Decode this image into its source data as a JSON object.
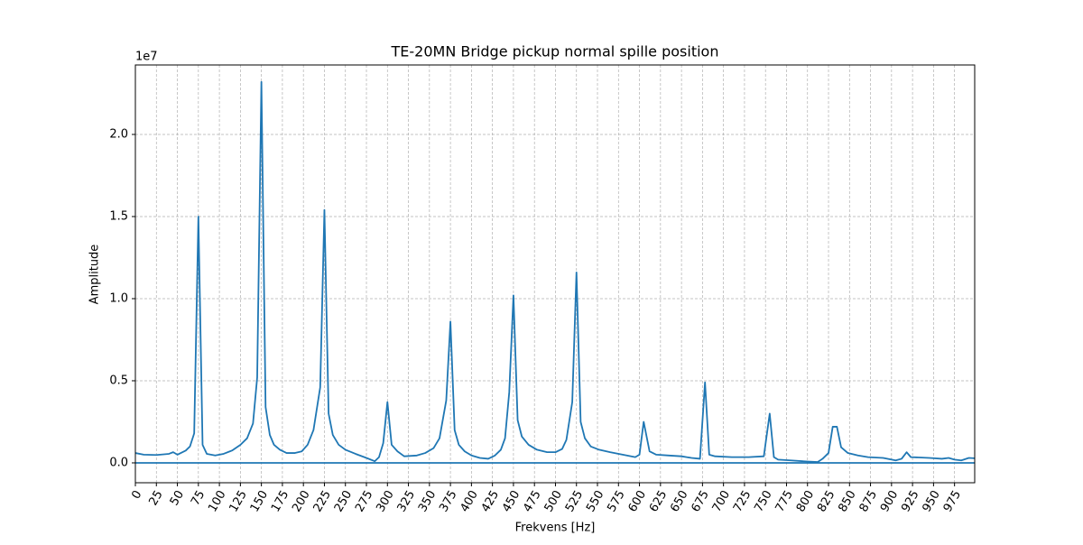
{
  "chart_data": {
    "type": "line",
    "title": "TE-20MN Bridge pickup normal spille position",
    "x_label": "Frekvens [Hz]",
    "y_label": "Amplitude",
    "y_offset_label": "1e7",
    "grid": true,
    "xlim": [
      0,
      999
    ],
    "ylim": [
      -1210000,
      24230000
    ],
    "xticks": [
      0,
      25,
      50,
      75,
      100,
      125,
      150,
      175,
      200,
      225,
      250,
      275,
      300,
      325,
      350,
      375,
      400,
      425,
      450,
      475,
      500,
      525,
      550,
      575,
      600,
      625,
      650,
      675,
      700,
      725,
      750,
      775,
      800,
      825,
      850,
      875,
      900,
      925,
      950,
      975
    ],
    "yticks": [
      {
        "value": 0,
        "label": "0.0"
      },
      {
        "value": 5000000,
        "label": "0.5"
      },
      {
        "value": 10000000,
        "label": "1.0"
      },
      {
        "value": 15000000,
        "label": "1.5"
      },
      {
        "value": 20000000,
        "label": "2.0"
      }
    ],
    "series": [
      {
        "color": "#1f77b4",
        "x": [
          0,
          10,
          25,
          40,
          45,
          50,
          60,
          65,
          70,
          75,
          80,
          85,
          95,
          105,
          115,
          125,
          133,
          140,
          145,
          150,
          155,
          160,
          165,
          172,
          180,
          190,
          198,
          205,
          212,
          220,
          225,
          230,
          235,
          242,
          250,
          262,
          275,
          285,
          290,
          295,
          300,
          305,
          312,
          320,
          335,
          345,
          355,
          362,
          370,
          375,
          380,
          385,
          392,
          400,
          410,
          420,
          428,
          435,
          440,
          445,
          450,
          455,
          460,
          468,
          478,
          490,
          500,
          508,
          513,
          520,
          525,
          530,
          535,
          542,
          552,
          565,
          580,
          595,
          600,
          605,
          612,
          620,
          635,
          650,
          662,
          672,
          678,
          683,
          690,
          710,
          730,
          748,
          755,
          760,
          765,
          780,
          800,
          812,
          818,
          825,
          830,
          835,
          840,
          848,
          860,
          872,
          890,
          905,
          912,
          918,
          923,
          945,
          960,
          968,
          975,
          983,
          992,
          999
        ],
        "values": [
          600000,
          500000,
          480000,
          550000,
          650000,
          500000,
          750000,
          1000000,
          1800000,
          15000000,
          1100000,
          550000,
          450000,
          550000,
          750000,
          1100000,
          1500000,
          2400000,
          5200000,
          23200000,
          3400000,
          1700000,
          1100000,
          800000,
          600000,
          600000,
          700000,
          1100000,
          2000000,
          4600000,
          15400000,
          3000000,
          1700000,
          1100000,
          800000,
          550000,
          300000,
          100000,
          350000,
          1200000,
          3700000,
          1100000,
          700000,
          400000,
          450000,
          600000,
          900000,
          1500000,
          3800000,
          8600000,
          2000000,
          1100000,
          700000,
          450000,
          300000,
          250000,
          450000,
          800000,
          1500000,
          4300000,
          10200000,
          2600000,
          1600000,
          1100000,
          800000,
          650000,
          650000,
          850000,
          1400000,
          3700000,
          11600000,
          2500000,
          1500000,
          1000000,
          800000,
          650000,
          500000,
          350000,
          500000,
          2500000,
          700000,
          500000,
          450000,
          400000,
          300000,
          250000,
          4900000,
          500000,
          400000,
          350000,
          350000,
          400000,
          3000000,
          350000,
          200000,
          150000,
          80000,
          50000,
          250000,
          600000,
          2200000,
          2200000,
          950000,
          600000,
          450000,
          350000,
          300000,
          150000,
          250000,
          650000,
          350000,
          300000,
          250000,
          300000,
          200000,
          150000,
          300000,
          280000
        ]
      },
      {
        "color": "#1f77b4",
        "x": [
          0,
          999
        ],
        "values": [
          0,
          0
        ]
      }
    ]
  }
}
